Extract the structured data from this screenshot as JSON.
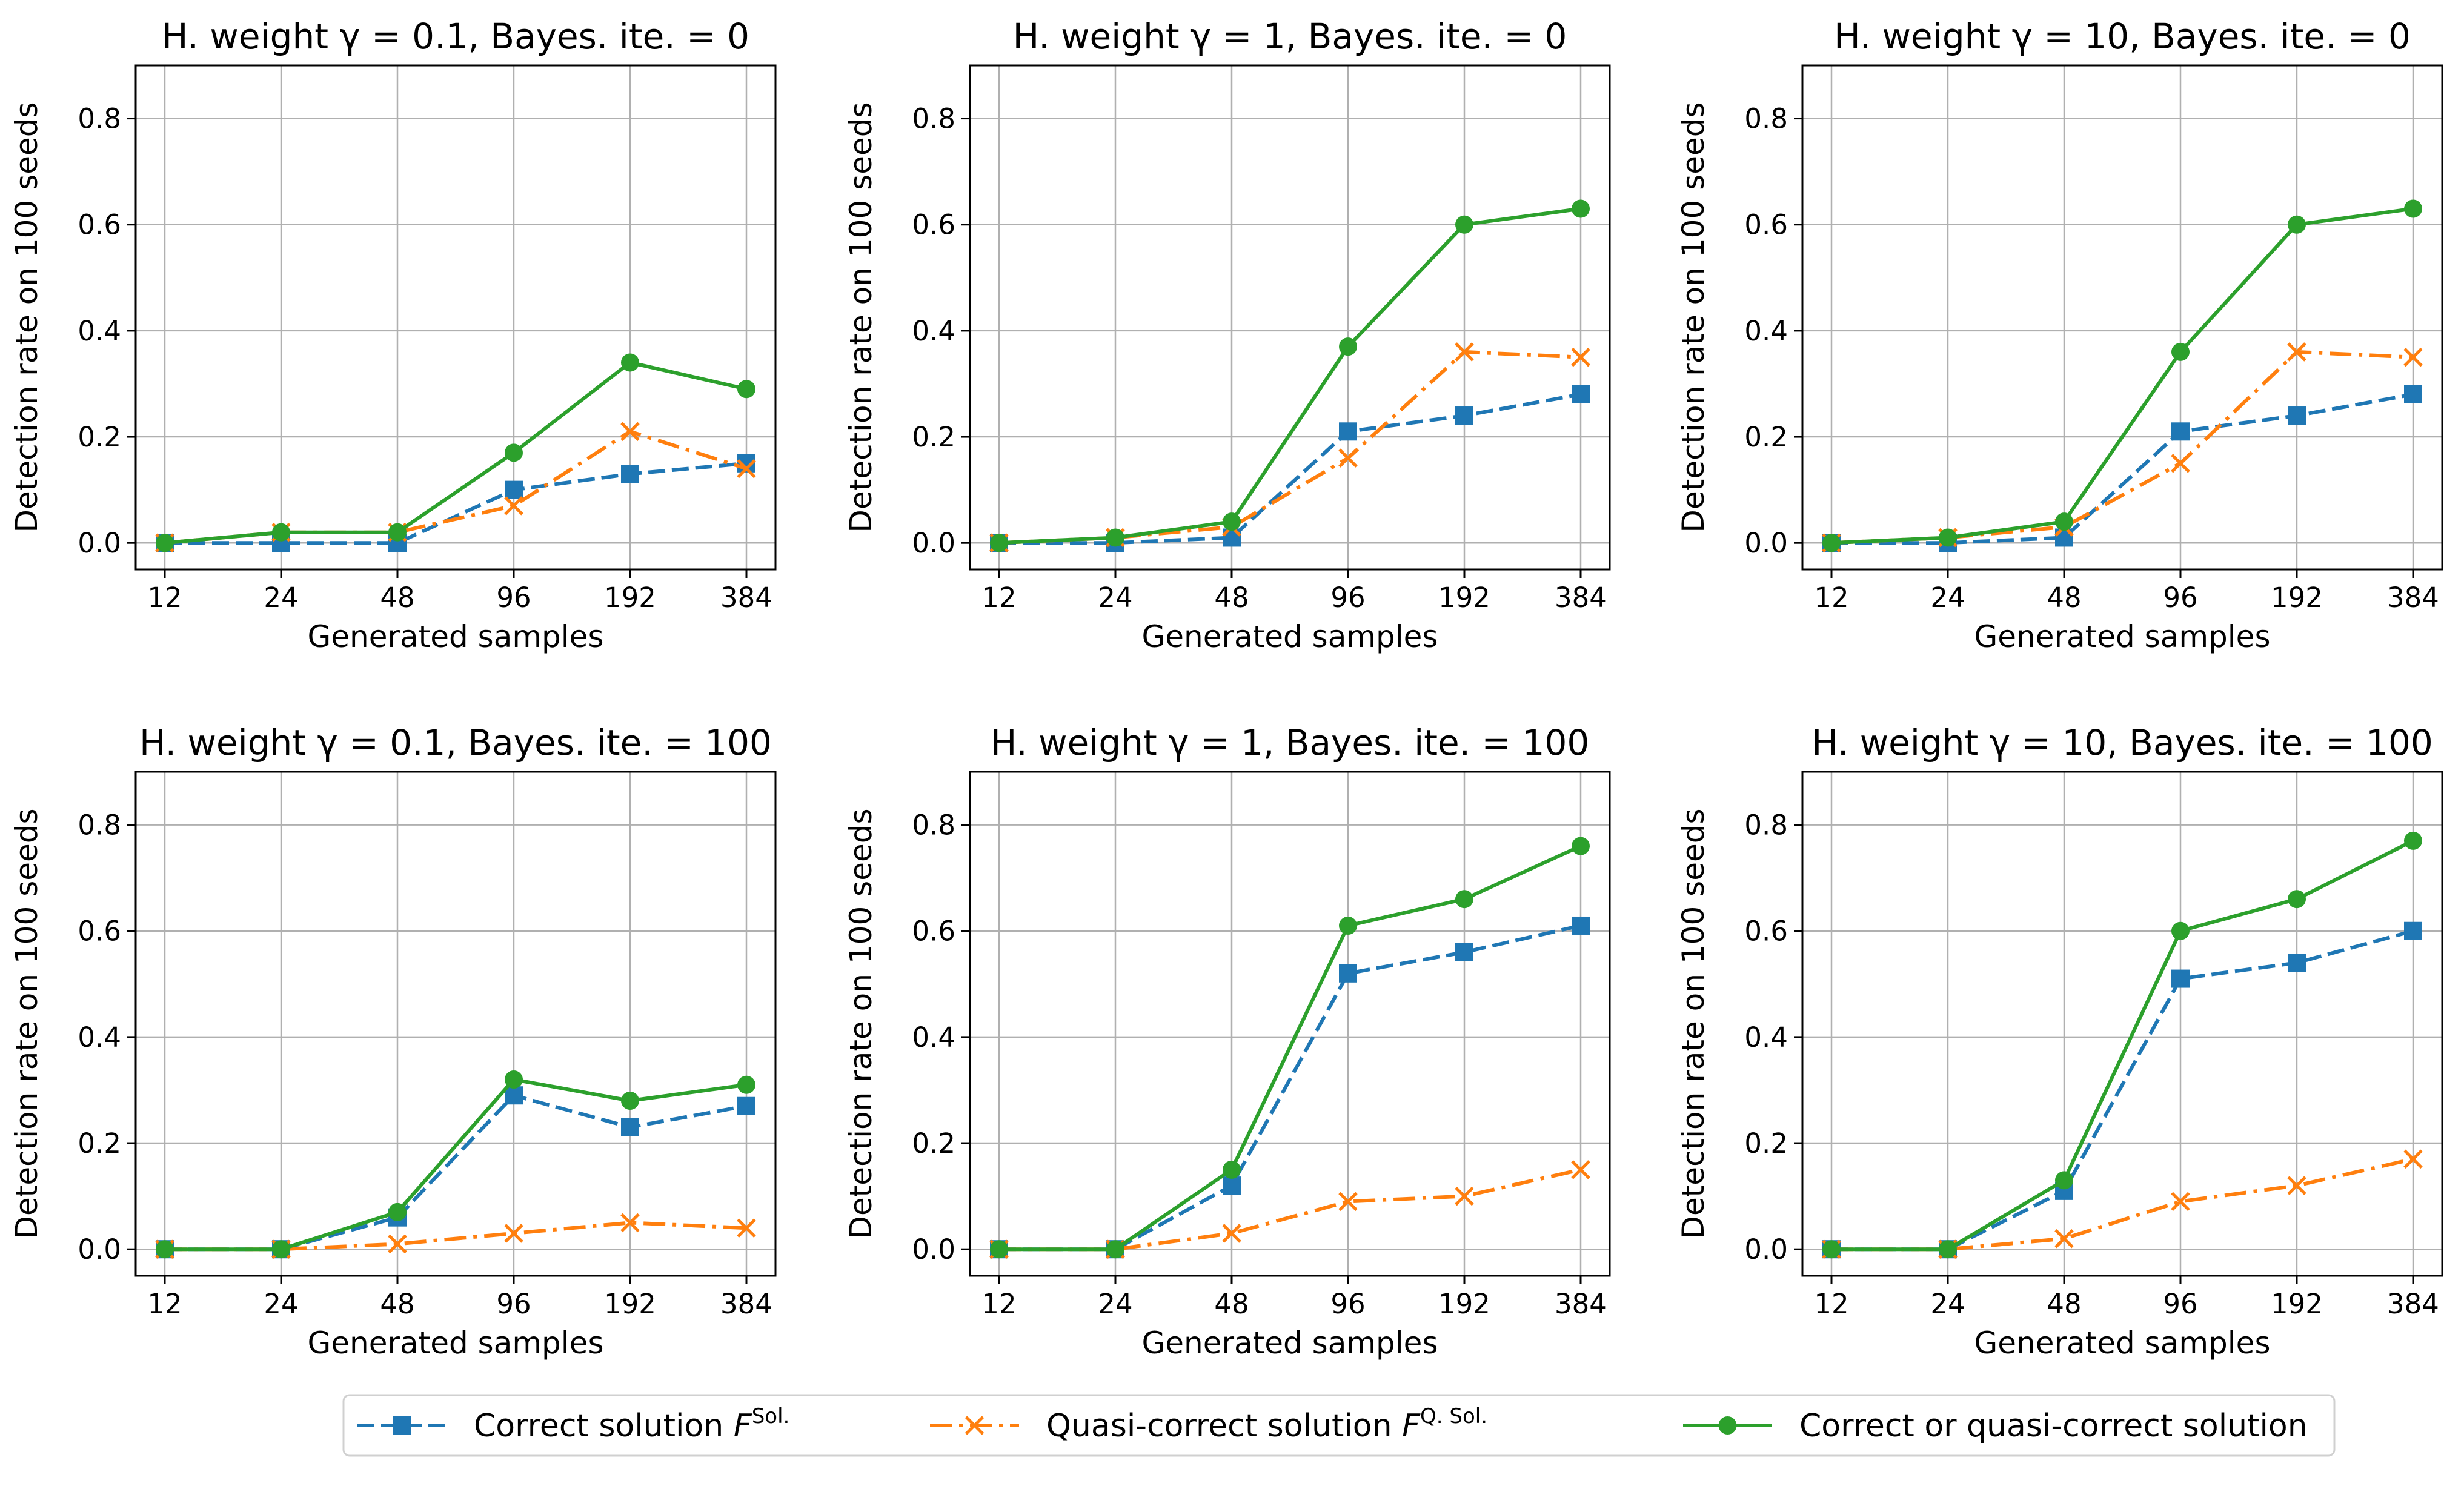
{
  "figure": {
    "type": "line",
    "legend_placement": "bottom-center",
    "grid": true
  },
  "series_styles": [
    {
      "key": "correct",
      "color": "#1f77b4",
      "dash": "dashed",
      "marker": "square"
    },
    {
      "key": "quasi",
      "color": "#ff7f0e",
      "dash": "dashdot",
      "marker": "x"
    },
    {
      "key": "either",
      "color": "#2ca02c",
      "dash": "solid",
      "marker": "circle"
    }
  ],
  "legend": {
    "items": [
      {
        "key": "correct",
        "text": "Correct solution ",
        "italic": "F",
        "sup": "Sol."
      },
      {
        "key": "quasi",
        "text": "Quasi-correct solution ",
        "italic": "F",
        "sup": "Q. Sol."
      },
      {
        "key": "either",
        "text": "Correct or quasi-correct solution",
        "italic": "",
        "sup": ""
      }
    ]
  },
  "chart_data": [
    {
      "type": "line",
      "title": "H. weight γ = 0.1, Bayes. ite. = 0",
      "xlabel": "Generated samples",
      "ylabel": "Detection rate on 100 seeds",
      "categories": [
        "12",
        "24",
        "48",
        "96",
        "192",
        "384"
      ],
      "ylim": [
        -0.05,
        0.9
      ],
      "yticks": [
        "0.0",
        "0.2",
        "0.4",
        "0.6",
        "0.8"
      ],
      "series": [
        {
          "key": "correct",
          "values": [
            0.0,
            0.0,
            0.0,
            0.1,
            0.13,
            0.15
          ]
        },
        {
          "key": "quasi",
          "values": [
            0.0,
            0.02,
            0.02,
            0.07,
            0.21,
            0.14
          ]
        },
        {
          "key": "either",
          "values": [
            0.0,
            0.02,
            0.02,
            0.17,
            0.34,
            0.29
          ]
        }
      ]
    },
    {
      "type": "line",
      "title": "H. weight γ = 1, Bayes. ite. = 0",
      "xlabel": "Generated samples",
      "ylabel": "Detection rate on 100 seeds",
      "categories": [
        "12",
        "24",
        "48",
        "96",
        "192",
        "384"
      ],
      "ylim": [
        -0.05,
        0.9
      ],
      "yticks": [
        "0.0",
        "0.2",
        "0.4",
        "0.6",
        "0.8"
      ],
      "series": [
        {
          "key": "correct",
          "values": [
            0.0,
            0.0,
            0.01,
            0.21,
            0.24,
            0.28
          ]
        },
        {
          "key": "quasi",
          "values": [
            0.0,
            0.01,
            0.03,
            0.16,
            0.36,
            0.35
          ]
        },
        {
          "key": "either",
          "values": [
            0.0,
            0.01,
            0.04,
            0.37,
            0.6,
            0.63
          ]
        }
      ]
    },
    {
      "type": "line",
      "title": "H. weight γ = 10, Bayes. ite. = 0",
      "xlabel": "Generated samples",
      "ylabel": "Detection rate on 100 seeds",
      "categories": [
        "12",
        "24",
        "48",
        "96",
        "192",
        "384"
      ],
      "ylim": [
        -0.05,
        0.9
      ],
      "yticks": [
        "0.0",
        "0.2",
        "0.4",
        "0.6",
        "0.8"
      ],
      "series": [
        {
          "key": "correct",
          "values": [
            0.0,
            0.0,
            0.01,
            0.21,
            0.24,
            0.28
          ]
        },
        {
          "key": "quasi",
          "values": [
            0.0,
            0.01,
            0.03,
            0.15,
            0.36,
            0.35
          ]
        },
        {
          "key": "either",
          "values": [
            0.0,
            0.01,
            0.04,
            0.36,
            0.6,
            0.63
          ]
        }
      ]
    },
    {
      "type": "line",
      "title": "H. weight γ = 0.1, Bayes. ite. = 100",
      "xlabel": "Generated samples",
      "ylabel": "Detection rate on 100 seeds",
      "categories": [
        "12",
        "24",
        "48",
        "96",
        "192",
        "384"
      ],
      "ylim": [
        -0.05,
        0.9
      ],
      "yticks": [
        "0.0",
        "0.2",
        "0.4",
        "0.6",
        "0.8"
      ],
      "series": [
        {
          "key": "correct",
          "values": [
            0.0,
            0.0,
            0.06,
            0.29,
            0.23,
            0.27
          ]
        },
        {
          "key": "quasi",
          "values": [
            0.0,
            0.0,
            0.01,
            0.03,
            0.05,
            0.04
          ]
        },
        {
          "key": "either",
          "values": [
            0.0,
            0.0,
            0.07,
            0.32,
            0.28,
            0.31
          ]
        }
      ]
    },
    {
      "type": "line",
      "title": "H. weight γ = 1, Bayes. ite. = 100",
      "xlabel": "Generated samples",
      "ylabel": "Detection rate on 100 seeds",
      "categories": [
        "12",
        "24",
        "48",
        "96",
        "192",
        "384"
      ],
      "ylim": [
        -0.05,
        0.9
      ],
      "yticks": [
        "0.0",
        "0.2",
        "0.4",
        "0.6",
        "0.8"
      ],
      "series": [
        {
          "key": "correct",
          "values": [
            0.0,
            0.0,
            0.12,
            0.52,
            0.56,
            0.61
          ]
        },
        {
          "key": "quasi",
          "values": [
            0.0,
            0.0,
            0.03,
            0.09,
            0.1,
            0.15
          ]
        },
        {
          "key": "either",
          "values": [
            0.0,
            0.0,
            0.15,
            0.61,
            0.66,
            0.76
          ]
        }
      ]
    },
    {
      "type": "line",
      "title": "H. weight γ = 10, Bayes. ite. = 100",
      "xlabel": "Generated samples",
      "ylabel": "Detection rate on 100 seeds",
      "categories": [
        "12",
        "24",
        "48",
        "96",
        "192",
        "384"
      ],
      "ylim": [
        -0.05,
        0.9
      ],
      "yticks": [
        "0.0",
        "0.2",
        "0.4",
        "0.6",
        "0.8"
      ],
      "series": [
        {
          "key": "correct",
          "values": [
            0.0,
            0.0,
            0.11,
            0.51,
            0.54,
            0.6
          ]
        },
        {
          "key": "quasi",
          "values": [
            0.0,
            0.0,
            0.02,
            0.09,
            0.12,
            0.17
          ]
        },
        {
          "key": "either",
          "values": [
            0.0,
            0.0,
            0.13,
            0.6,
            0.66,
            0.77
          ]
        }
      ]
    }
  ]
}
